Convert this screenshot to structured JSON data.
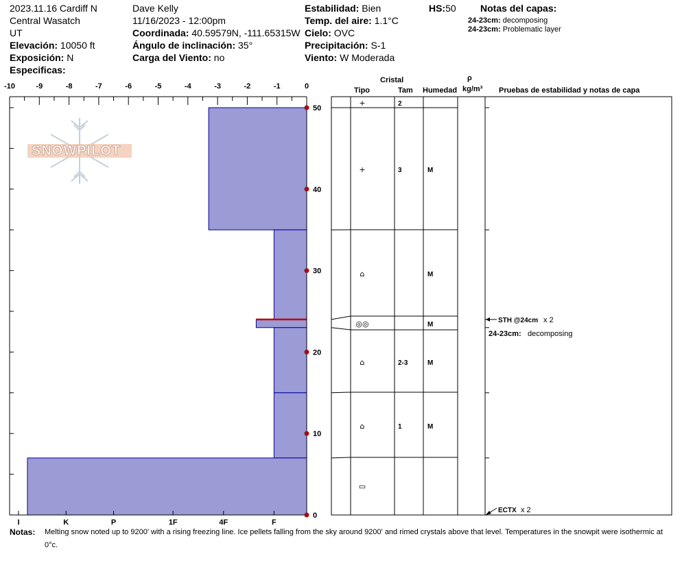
{
  "header": {
    "col1": [
      "2023.11.16 Cardiff N",
      "Central Wasatch",
      "UT"
    ],
    "elevation_label": "Elevación:",
    "elevation": "10050 ft",
    "aspect_label": "Exposición:",
    "aspect": "N",
    "specifics_label": "Especificas:",
    "observer": "Dave Kelly",
    "datetime": "11/16/2023 - 12:00pm",
    "coord_label": "Coordinada:",
    "coord": "40.59579N, -111.65315W",
    "slope_label": "Ángulo de inclinación:",
    "slope": "35°",
    "wind_load_label": "Carga del Viento:",
    "wind_load": "no",
    "stability_label": "Estabilidad:",
    "stability": "Bien",
    "air_temp_label": "Temp. del aire:",
    "air_temp": "1.1°C",
    "sky_label": "Cielo:",
    "sky": "OVC",
    "precip_label": "Precipitación:",
    "precip": "S-1",
    "wind_label": "Viento:",
    "wind": "W Moderada",
    "hs_label": "HS:",
    "hs": "50",
    "layer_notes_title": "Notas del capas:",
    "layer_notes": [
      {
        "depth": "24-23cm:",
        "text": "decomposing"
      },
      {
        "depth": "24-23cm:",
        "text": "Problematic layer"
      }
    ]
  },
  "logo_text": "SNOWPILOT",
  "table_headers": {
    "crystal": "Cristal",
    "type": "Tipo",
    "size": "Tam",
    "moisture": "Humedad",
    "rho": "ρ",
    "density_unit": "kg/m³",
    "tests": "Pruebas de estabilidad y notas de capa"
  },
  "layers": [
    {
      "type_symbol": "+",
      "size": "2",
      "moisture": ""
    },
    {
      "type_symbol": "+",
      "size": "3",
      "moisture": "M"
    },
    {
      "type_symbol": "⌂",
      "size": "",
      "moisture": "M"
    },
    {
      "type_symbol": "◎◎",
      "size": "",
      "moisture": "M"
    },
    {
      "type_symbol": "⌂",
      "size": "2-3",
      "moisture": "M"
    },
    {
      "type_symbol": "⌂",
      "size": "1",
      "moisture": "M"
    },
    {
      "type_symbol": "▭",
      "size": "",
      "moisture": ""
    }
  ],
  "tests": [
    {
      "label": "STH @24cm",
      "count": "x 2"
    },
    {
      "label": "ECTX",
      "count": "x 2"
    }
  ],
  "test_note": {
    "depth": "24-23cm:",
    "text": "decomposing"
  },
  "notes_label": "Notas:",
  "notes_text": "Melting snow noted up to 9200' with a rising freezing line. Ice pellets falling from the sky around 9200' and rimed crystals above that level. Temperatures in the snowpit were isothermic at 0°c.",
  "chart_data": {
    "type": "bar",
    "temp_axis": {
      "ticks": [
        "-10",
        "-9",
        "-8",
        "-7",
        "-6",
        "-5",
        "-4",
        "-3",
        "-2",
        "-1",
        "0"
      ],
      "min": -10,
      "max": 0
    },
    "hardness_axis": {
      "ticks": [
        "I",
        "K",
        "P",
        "1F",
        "4F",
        "F"
      ]
    },
    "height_axis": {
      "ticks": [
        "0",
        "10",
        "20",
        "30",
        "40",
        "50"
      ],
      "min": 0,
      "max": 50
    },
    "hardness_layers": [
      {
        "top": 50,
        "bottom": 35,
        "hardness_value": 3.3
      },
      {
        "top": 35,
        "bottom": 24,
        "hardness_value": 1.1
      },
      {
        "top": 24,
        "bottom": 23,
        "hardness_value": 1.7
      },
      {
        "top": 23,
        "bottom": 15,
        "hardness_value": 1.1
      },
      {
        "top": 15,
        "bottom": 7,
        "hardness_value": 1.1
      },
      {
        "top": 7,
        "bottom": 0,
        "hardness_value": 9.4
      }
    ],
    "temperature_points": [
      {
        "height": 0,
        "temp": 0
      },
      {
        "height": 10,
        "temp": 0
      },
      {
        "height": 20,
        "temp": 0
      },
      {
        "height": 30,
        "temp": 0
      },
      {
        "height": 40,
        "temp": 0
      },
      {
        "height": 50,
        "temp": 0
      }
    ],
    "problem_layer": {
      "height": 24
    },
    "colors": {
      "layer_fill": "#9b9bd6",
      "layer_stroke": "#0000a0",
      "temp_point": "#a01010",
      "problem_line": "#c00000"
    }
  }
}
